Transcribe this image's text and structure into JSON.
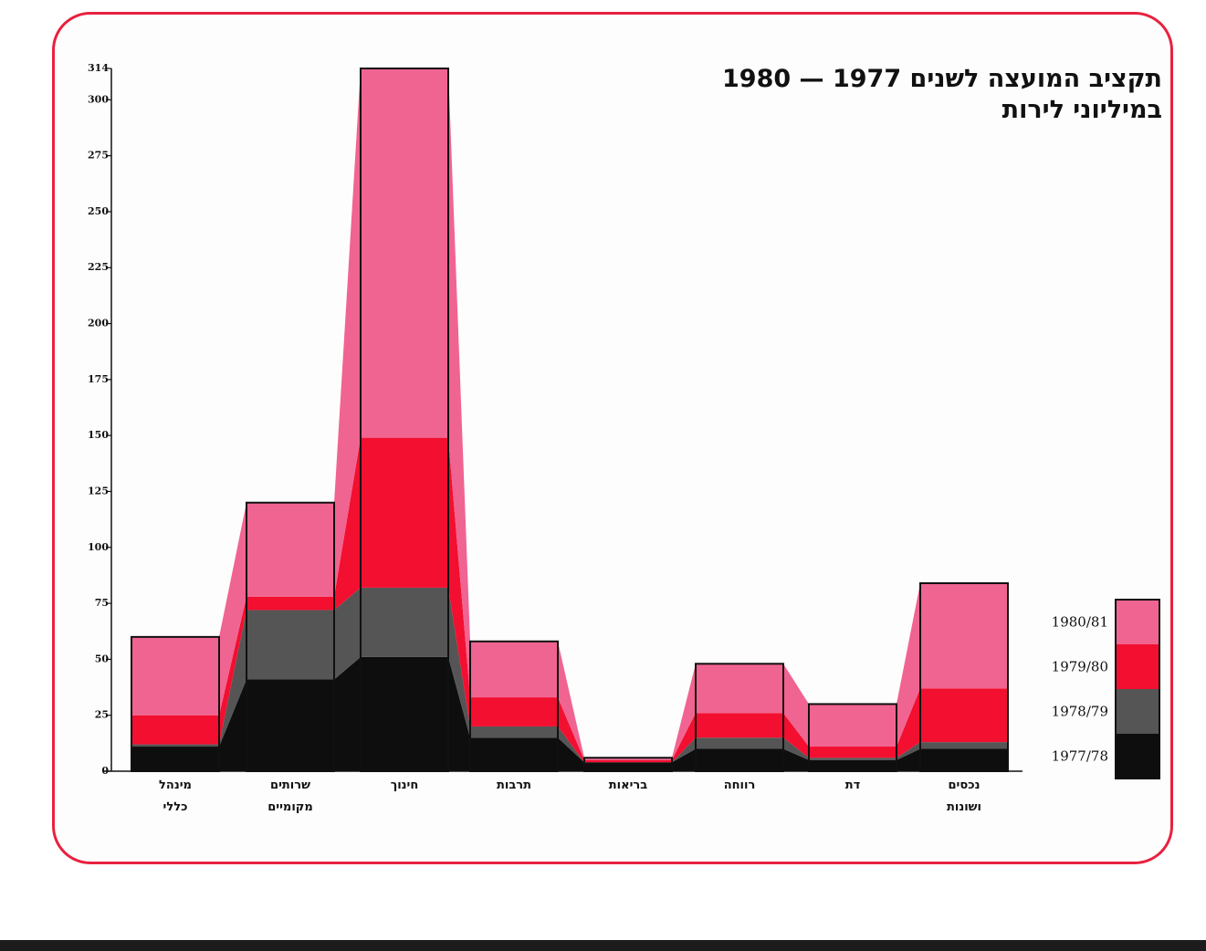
{
  "title": {
    "line1": "תקציב המועצה לשנים 1977 — 1980",
    "line2": "במיליוני לירות"
  },
  "colors": {
    "frame": "#e8213f",
    "y1980_81": "#f06491",
    "y1979_80": "#f20f30",
    "y1978_79": "#555555",
    "y1977_78": "#0e0e0e"
  },
  "chart_data": {
    "type": "bar",
    "stacked": true,
    "yticks": [
      "0",
      "25",
      "50",
      "75",
      "100",
      "125",
      "150",
      "175",
      "200",
      "225",
      "250",
      "275",
      "300",
      "314"
    ],
    "ylim": [
      0,
      314
    ],
    "categories": [
      [
        "מינהל",
        "כללי"
      ],
      [
        "שרותים",
        "מקומיים"
      ],
      [
        "חינוך"
      ],
      [
        "תרבות"
      ],
      [
        "בריאות"
      ],
      [
        "רווחה"
      ],
      [
        "דת"
      ],
      [
        "נכסים",
        "ושונות"
      ]
    ],
    "series": [
      {
        "name": "1977/78",
        "key": "y1977_78",
        "values": [
          11,
          41,
          51,
          15,
          4,
          10,
          5,
          10
        ]
      },
      {
        "name": "1978/79",
        "key": "y1978_79",
        "values": [
          1,
          31,
          31,
          5,
          0,
          5,
          1,
          3
        ]
      },
      {
        "name": "1979/80",
        "key": "y1979_80",
        "values": [
          13,
          6,
          67,
          13,
          1,
          11,
          5,
          24
        ]
      },
      {
        "name": "1980/81",
        "key": "y1980_81",
        "values": [
          35,
          42,
          165,
          25,
          1,
          22,
          19,
          47
        ]
      }
    ],
    "legend": {
      "placement": "right",
      "entries": [
        "1980/81",
        "1979/80",
        "1978/79",
        "1977/78"
      ]
    }
  }
}
